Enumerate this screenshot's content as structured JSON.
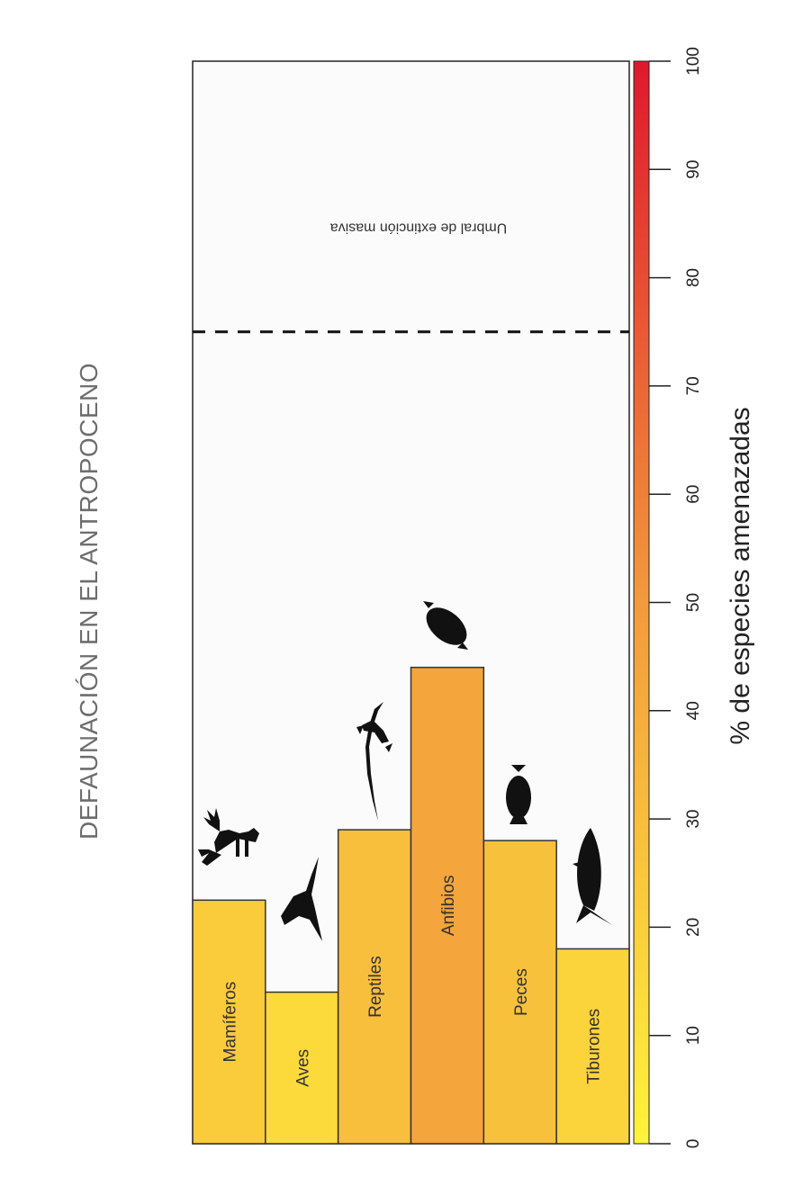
{
  "chart_data": {
    "type": "bar",
    "title": "DEFAUNACIÓN  EN EL ANTROPOCENO",
    "ylabel": "% de especies amenazadas",
    "xlabel": "",
    "ylim": [
      0,
      100
    ],
    "yticks": [
      "0",
      "10",
      "20",
      "30",
      "40",
      "50",
      "60",
      "70",
      "80",
      "90",
      "100"
    ],
    "categories": [
      "Mamíferos",
      "Aves",
      "Reptiles",
      "Anfibios",
      "Peces",
      "Tiburones"
    ],
    "values": [
      22.5,
      14,
      29,
      44,
      28,
      18
    ],
    "threshold": {
      "value": 75,
      "label": "Umbral de extinción masiva"
    },
    "colorscale": {
      "low": "#fff33b",
      "mid": "#f39a3c",
      "high": "#e0182d"
    },
    "icons": [
      "deer-icon",
      "bird-icon",
      "lizard-icon",
      "frog-icon",
      "fish-icon",
      "shark-icon"
    ],
    "orientation": "rotated-90-clockwise",
    "grid": false
  }
}
